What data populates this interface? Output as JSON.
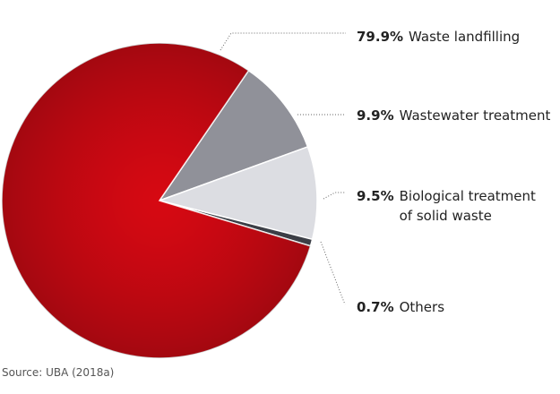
{
  "chart_data": {
    "type": "pie",
    "categories": [
      "Wastewater treatment",
      "Biological treatment of solid waste",
      "Others",
      "Waste landfilling"
    ],
    "values": [
      9.9,
      9.5,
      0.7,
      79.9
    ],
    "value_labels": [
      "9.9%",
      "9.5%",
      "0.7%",
      "79.9%"
    ],
    "colors": [
      "#909199",
      "#dcdde2",
      "#3b3e46",
      "#d10a15"
    ],
    "source": "Source: UBA (2018a)"
  }
}
